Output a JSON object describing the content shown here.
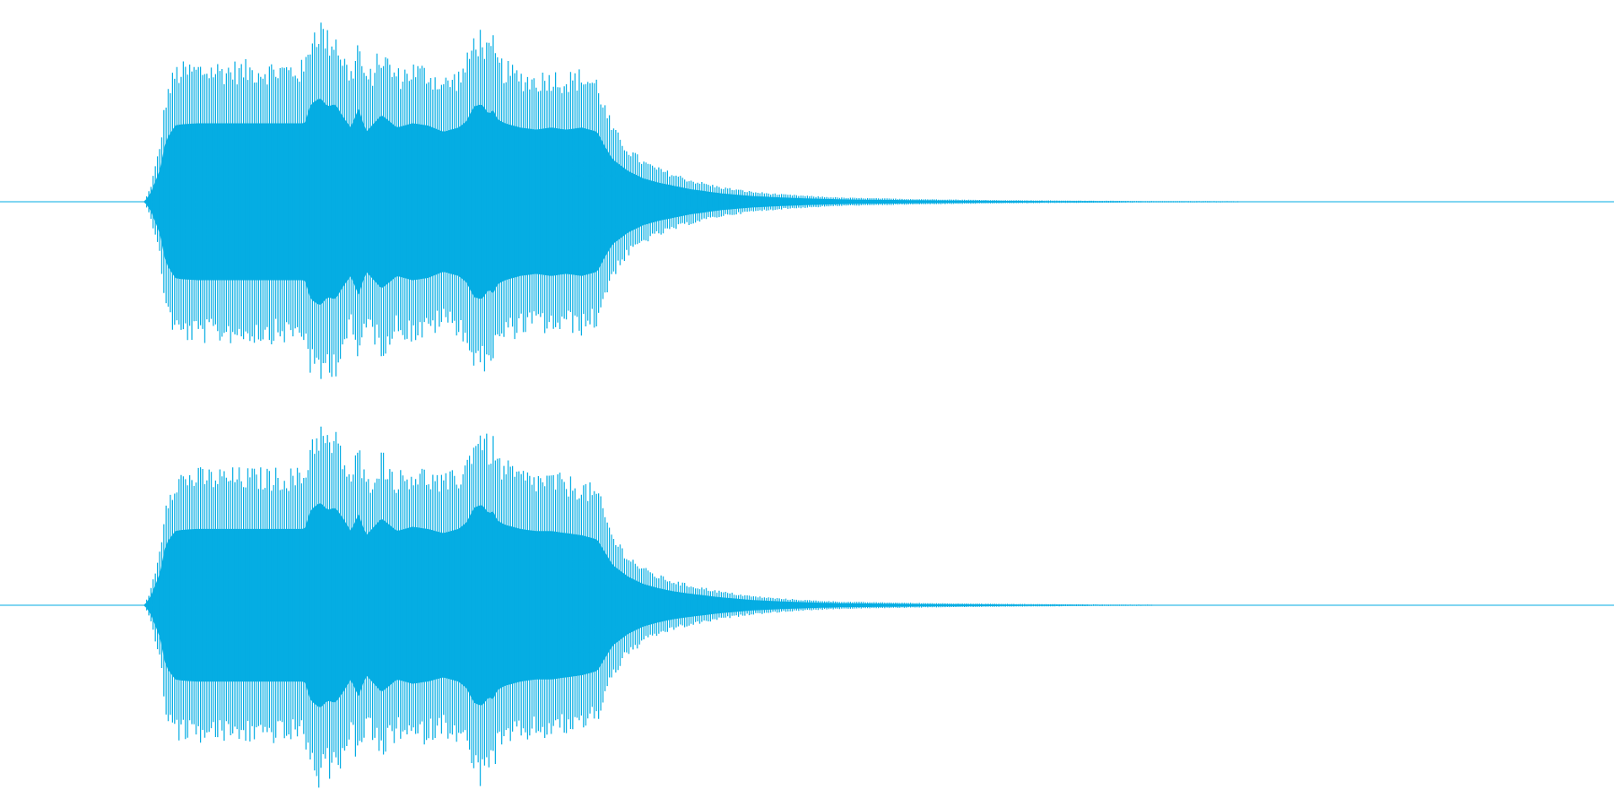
{
  "chart_data": {
    "type": "area",
    "title": "",
    "xlabel": "",
    "ylabel": "",
    "grid": false,
    "legend": "none",
    "ylim": [
      -1,
      1
    ],
    "xlim": [
      0,
      1
    ],
    "colors": {
      "waveform": "#05ade3",
      "baseline": "#05ade3",
      "background": "#ffffff"
    },
    "channels": [
      {
        "channel": 1,
        "envelope": {
          "x": [
            0.0,
            0.046,
            0.05,
            0.056,
            0.06,
            0.066,
            0.07,
            0.08,
            0.1,
            0.12,
            0.14,
            0.146,
            0.15,
            0.154,
            0.16,
            0.165,
            0.17,
            0.175,
            0.18,
            0.185,
            0.19,
            0.2,
            0.21,
            0.22,
            0.23,
            0.24,
            0.25,
            0.255,
            0.26,
            0.265,
            0.27,
            0.272,
            0.275,
            0.28,
            0.29,
            0.3,
            0.31,
            0.32,
            0.33,
            0.34,
            0.345,
            0.35,
            0.36,
            0.37,
            0.38,
            0.39,
            0.4,
            0.42,
            0.44,
            0.46,
            0.48,
            0.5,
            0.55,
            0.6,
            0.65,
            0.7,
            0.756,
            0.76,
            1.0
          ],
          "upper": [
            0.0,
            0.0,
            0.08,
            0.3,
            0.58,
            0.72,
            0.73,
            0.74,
            0.74,
            0.74,
            0.74,
            0.74,
            0.74,
            0.92,
            0.98,
            0.9,
            0.92,
            0.8,
            0.7,
            0.88,
            0.66,
            0.82,
            0.7,
            0.74,
            0.72,
            0.66,
            0.7,
            0.76,
            0.9,
            0.92,
            0.82,
            0.88,
            0.78,
            0.74,
            0.7,
            0.68,
            0.7,
            0.68,
            0.7,
            0.66,
            0.52,
            0.4,
            0.29,
            0.22,
            0.18,
            0.15,
            0.12,
            0.08,
            0.055,
            0.04,
            0.03,
            0.022,
            0.014,
            0.009,
            0.006,
            0.004,
            0.003,
            0.0,
            0.0
          ],
          "lower": [
            0.0,
            0.0,
            0.08,
            0.3,
            0.58,
            0.72,
            0.73,
            0.74,
            0.74,
            0.74,
            0.74,
            0.74,
            0.74,
            0.92,
            0.98,
            0.9,
            0.92,
            0.8,
            0.7,
            0.88,
            0.66,
            0.82,
            0.7,
            0.74,
            0.72,
            0.66,
            0.7,
            0.76,
            0.9,
            0.92,
            0.82,
            0.88,
            0.78,
            0.74,
            0.7,
            0.68,
            0.7,
            0.68,
            0.7,
            0.66,
            0.52,
            0.4,
            0.29,
            0.22,
            0.18,
            0.15,
            0.12,
            0.08,
            0.055,
            0.04,
            0.03,
            0.022,
            0.014,
            0.009,
            0.006,
            0.004,
            0.003,
            0.0,
            0.0
          ]
        }
      },
      {
        "channel": 2,
        "envelope": {
          "x": [
            0.0,
            0.046,
            0.05,
            0.056,
            0.06,
            0.066,
            0.07,
            0.08,
            0.1,
            0.12,
            0.14,
            0.146,
            0.15,
            0.154,
            0.16,
            0.165,
            0.17,
            0.175,
            0.18,
            0.185,
            0.19,
            0.2,
            0.21,
            0.22,
            0.23,
            0.24,
            0.25,
            0.255,
            0.26,
            0.265,
            0.27,
            0.272,
            0.275,
            0.28,
            0.29,
            0.3,
            0.31,
            0.32,
            0.33,
            0.34,
            0.345,
            0.35,
            0.36,
            0.37,
            0.38,
            0.39,
            0.4,
            0.42,
            0.44,
            0.46,
            0.48,
            0.5,
            0.55,
            0.6,
            0.65,
            0.7,
            0.706,
            0.71,
            1.0
          ],
          "upper": [
            0.0,
            0.0,
            0.08,
            0.3,
            0.58,
            0.7,
            0.71,
            0.72,
            0.72,
            0.72,
            0.72,
            0.72,
            0.72,
            0.9,
            0.97,
            0.9,
            0.92,
            0.82,
            0.7,
            0.86,
            0.66,
            0.82,
            0.7,
            0.74,
            0.72,
            0.68,
            0.72,
            0.78,
            0.92,
            0.95,
            0.86,
            0.9,
            0.8,
            0.76,
            0.72,
            0.7,
            0.7,
            0.68,
            0.66,
            0.62,
            0.5,
            0.38,
            0.27,
            0.2,
            0.16,
            0.13,
            0.11,
            0.075,
            0.05,
            0.036,
            0.026,
            0.019,
            0.012,
            0.008,
            0.005,
            0.003,
            0.002,
            0.0,
            0.0
          ],
          "lower": [
            0.0,
            0.0,
            0.08,
            0.3,
            0.58,
            0.7,
            0.71,
            0.72,
            0.72,
            0.72,
            0.72,
            0.72,
            0.72,
            0.9,
            0.97,
            0.9,
            0.92,
            0.82,
            0.7,
            0.86,
            0.66,
            0.82,
            0.7,
            0.74,
            0.72,
            0.68,
            0.72,
            0.78,
            0.92,
            0.95,
            0.86,
            0.9,
            0.8,
            0.76,
            0.72,
            0.7,
            0.7,
            0.68,
            0.66,
            0.62,
            0.5,
            0.38,
            0.27,
            0.2,
            0.16,
            0.13,
            0.11,
            0.075,
            0.05,
            0.036,
            0.026,
            0.019,
            0.012,
            0.008,
            0.005,
            0.003,
            0.002,
            0.0,
            0.0
          ]
        }
      }
    ]
  }
}
